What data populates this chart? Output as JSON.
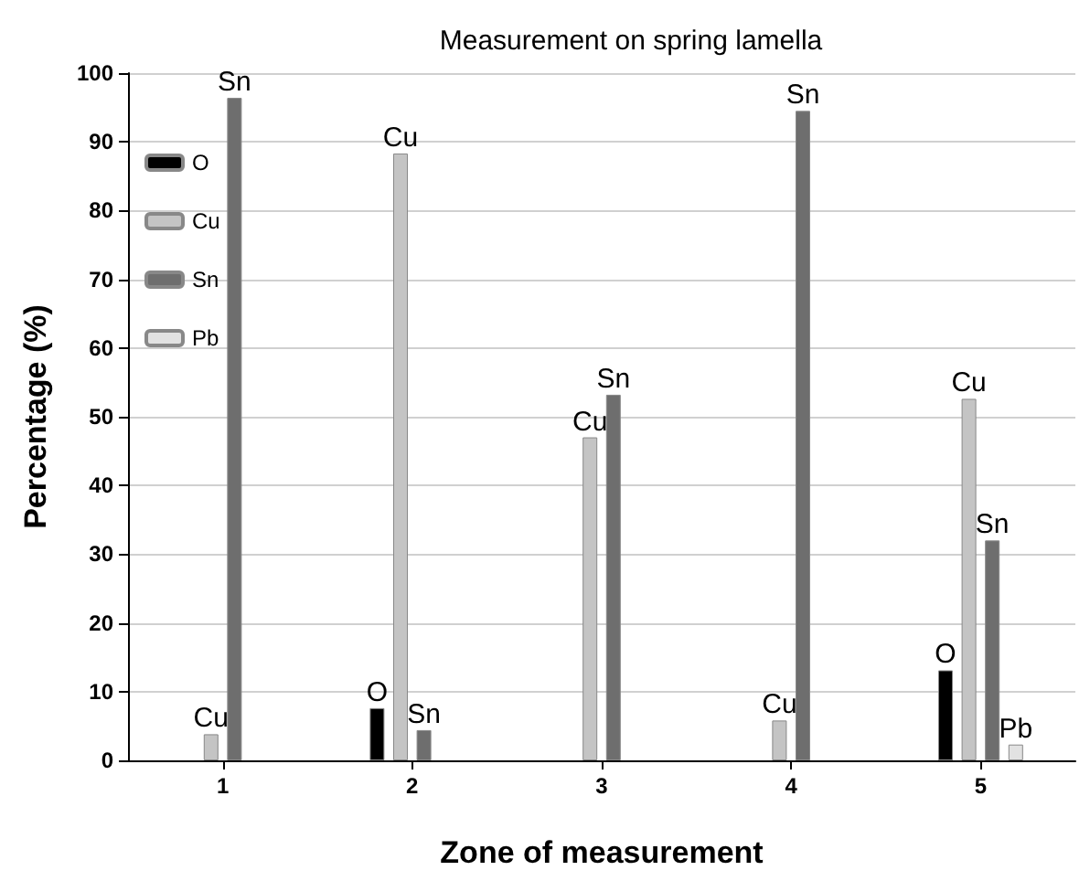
{
  "chart_data": {
    "type": "bar",
    "title": "Measurement on spring lamella",
    "xlabel": "Zone of measurement",
    "ylabel": "Percentage (%)",
    "categories": [
      "1",
      "2",
      "3",
      "4",
      "5"
    ],
    "series": [
      {
        "name": "O",
        "color": "#000000",
        "values": [
          null,
          7.6,
          null,
          null,
          13.1
        ],
        "value_labels": [
          null,
          "O",
          null,
          null,
          "O"
        ]
      },
      {
        "name": "Cu",
        "color": "#c4c4c4",
        "values": [
          3.8,
          88.3,
          47.0,
          5.8,
          52.6
        ],
        "value_labels": [
          "Cu",
          "Cu",
          "Cu",
          "Cu",
          "Cu"
        ]
      },
      {
        "name": "Sn",
        "color": "#6e6e6e",
        "values": [
          96.4,
          4.4,
          53.2,
          94.5,
          32.0
        ],
        "value_labels": [
          "Sn",
          "Sn",
          "Sn",
          "Sn",
          "Sn"
        ]
      },
      {
        "name": "Pb",
        "color": "#e2e2e2",
        "values": [
          null,
          null,
          null,
          null,
          2.3
        ],
        "value_labels": [
          null,
          null,
          null,
          null,
          "Pb"
        ]
      }
    ],
    "ylim": [
      0,
      100
    ],
    "yticks": [
      0,
      10,
      20,
      30,
      40,
      50,
      60,
      70,
      80,
      90,
      100
    ],
    "grid": "y",
    "legend": "top left"
  }
}
